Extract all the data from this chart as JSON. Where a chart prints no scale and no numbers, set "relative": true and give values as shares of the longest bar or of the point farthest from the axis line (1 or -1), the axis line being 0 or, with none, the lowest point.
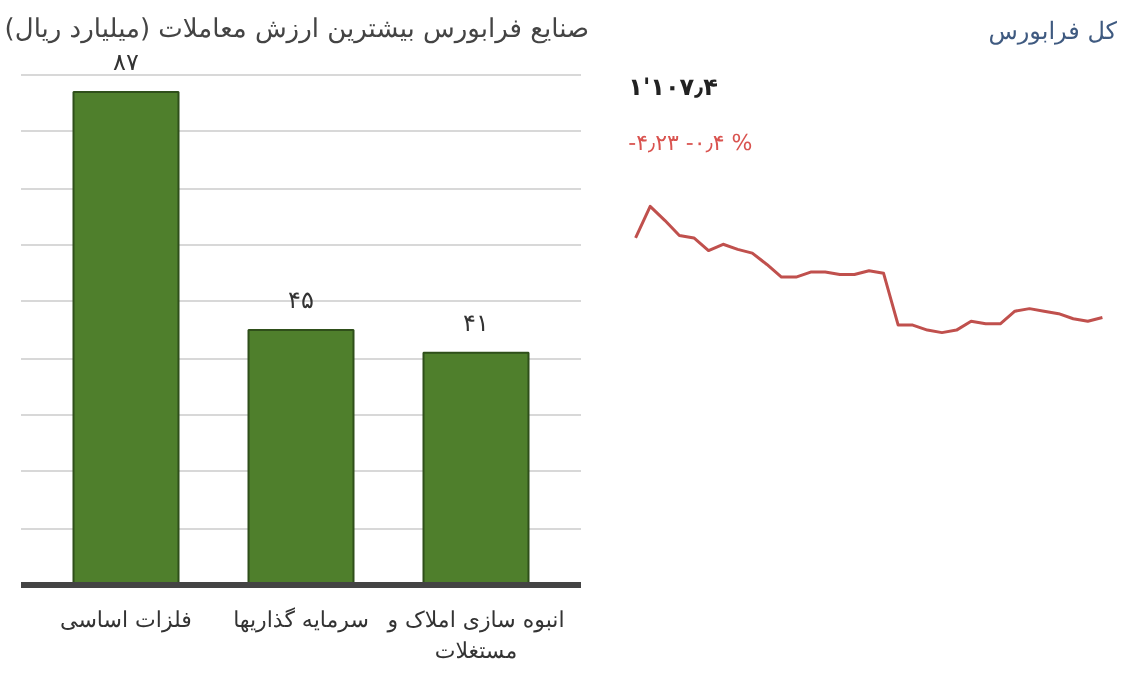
{
  "chart_data": [
    {
      "type": "bar",
      "title": "صنایع فرابورس بیشترین ارزش معاملات  (میلیارد ریال)",
      "categories": [
        "فلزات اساسی",
        "سرمایه گذاریها",
        "انبوه سازی املاک و مستغلات"
      ],
      "values": [
        87,
        45,
        41
      ],
      "value_labels": [
        "۸۷",
        "۴۵",
        "۴۱"
      ],
      "color": "#4f7f2c",
      "grid": "y",
      "tick_labels": "x"
    },
    {
      "type": "line",
      "title": "کل فرابورس",
      "relative": true,
      "annotations": [
        "۱'۱۰۷٫۴",
        "-۴٫۲۳   -۰٫۴ %"
      ],
      "categories": [
        null,
        null,
        null,
        null,
        null,
        null,
        null,
        null,
        null,
        null,
        null,
        null,
        null,
        null,
        null,
        null,
        null,
        null,
        null,
        null,
        null,
        null,
        null,
        null,
        null,
        null,
        null,
        null,
        null,
        null,
        null,
        null,
        null
      ],
      "series": [
        {
          "color": "#c0504d",
          "values": [
            0.75,
            1,
            0.89,
            0.77,
            0.75,
            0.65,
            0.7,
            0.66,
            0.63,
            0.54,
            0.44,
            0.44,
            0.48,
            0.48,
            0.46,
            0.46,
            0.49,
            0.47,
            0.06,
            0.06,
            0.02,
            0,
            0.02,
            0.09,
            0.07,
            0.07,
            0.17,
            0.19,
            0.17,
            0.15,
            0.11,
            0.09,
            0.12
          ]
        }
      ],
      "tick_labels": false
    }
  ]
}
